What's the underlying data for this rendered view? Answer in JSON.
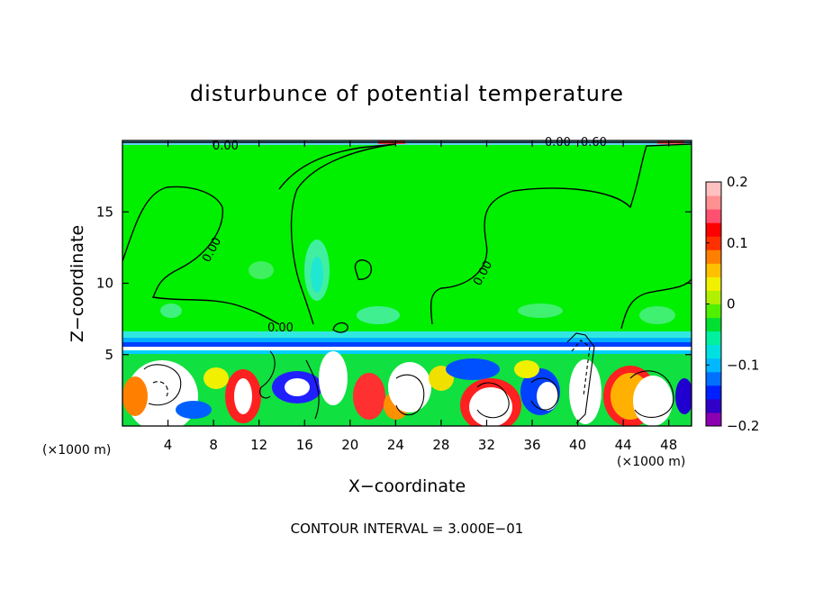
{
  "chart_data": {
    "type": "heatmap",
    "title": "disturbunce of potential temperature",
    "xlabel": "X−coordinate",
    "ylabel": "Z−coordinate",
    "x_unit": "(×1000 m)",
    "y_unit": "(×1000 m)",
    "xlim": [
      0,
      50
    ],
    "ylim": [
      0,
      20
    ],
    "x_ticks": [
      4,
      8,
      12,
      16,
      20,
      24,
      28,
      32,
      36,
      40,
      44,
      48
    ],
    "y_ticks": [
      5,
      10,
      15
    ],
    "colorbar": {
      "range": [
        -0.2,
        0.2
      ],
      "tick_labels": [
        "0.2",
        "0.1",
        "0",
        "−0.1",
        "−0.2"
      ],
      "colors": [
        "#8b00b0",
        "#3000c8",
        "#0020ff",
        "#0070ff",
        "#00b8ff",
        "#00e0e0",
        "#00f0a0",
        "#00e030",
        "#50f000",
        "#b0f000",
        "#f0f000",
        "#ffc000",
        "#ff8000",
        "#ff3000",
        "#ff0000",
        "#ff5070",
        "#ff9090",
        "#ffc0c0"
      ]
    },
    "contour_labels": [
      "0.00",
      "0.00",
      "0.00",
      "0.00",
      "0.00",
      "0.00",
      "0.60"
    ],
    "annotation": "CONTOUR INTERVAL = 3.000E−01"
  }
}
